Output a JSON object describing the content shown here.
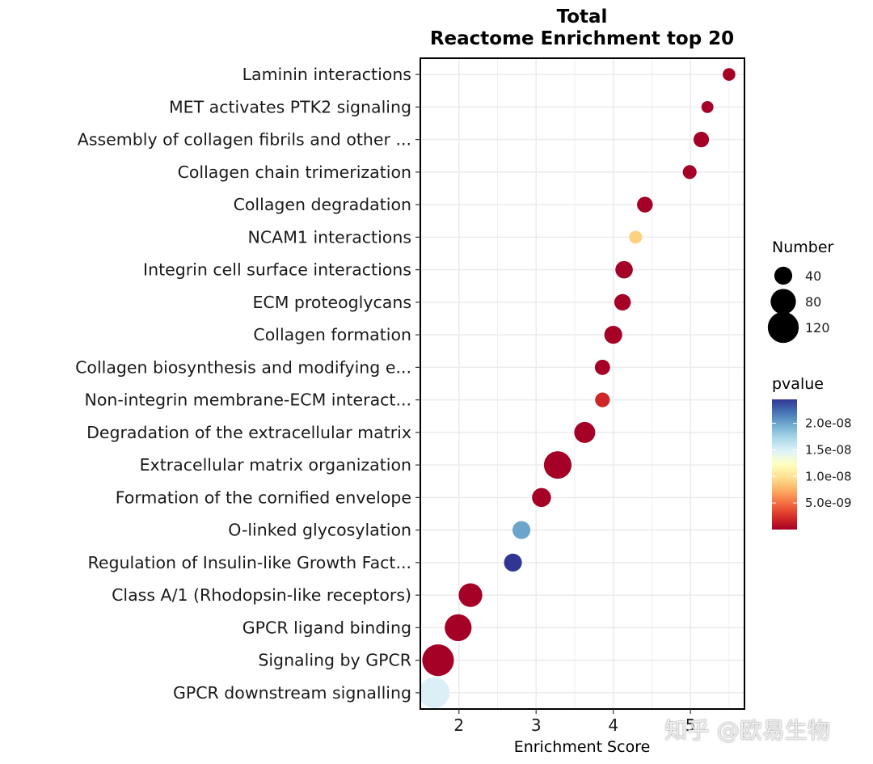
{
  "chart_data": {
    "type": "scatter",
    "title": "Total",
    "subtitle": "Reactome Enrichment top 20",
    "xlabel": "Enrichment Score",
    "ylabel": "",
    "xlim": [
      1.5,
      5.7
    ],
    "x_ticks": [
      2,
      3,
      4,
      5
    ],
    "terms": [
      {
        "label": "Laminin interactions",
        "x": 5.5,
        "number": 20,
        "pvalue": 1e-12
      },
      {
        "label": "MET activates PTK2 signaling",
        "x": 5.22,
        "number": 18,
        "pvalue": 1e-12
      },
      {
        "label": "Assembly of collagen fibrils and other ...",
        "x": 5.14,
        "number": 30,
        "pvalue": 1e-12
      },
      {
        "label": "Collagen chain trimerization",
        "x": 4.99,
        "number": 24,
        "pvalue": 1e-12
      },
      {
        "label": "Collagen degradation",
        "x": 4.41,
        "number": 31,
        "pvalue": 1e-12
      },
      {
        "label": "NCAM1 interactions",
        "x": 4.29,
        "number": 21,
        "pvalue": 9e-09
      },
      {
        "label": "Integrin cell surface interactions",
        "x": 4.14,
        "number": 38,
        "pvalue": 1e-12
      },
      {
        "label": "ECM proteoglycans",
        "x": 4.12,
        "number": 34,
        "pvalue": 1e-12
      },
      {
        "label": "Collagen formation",
        "x": 4.0,
        "number": 40,
        "pvalue": 1e-12
      },
      {
        "label": "Collagen biosynthesis and modifying e...",
        "x": 3.86,
        "number": 29,
        "pvalue": 1e-12
      },
      {
        "label": "Non-integrin membrane-ECM interact...",
        "x": 3.86,
        "number": 27,
        "pvalue": 2e-09
      },
      {
        "label": "Degradation of the extracellular matrix",
        "x": 3.63,
        "number": 55,
        "pvalue": 1e-12
      },
      {
        "label": "Extracellular matrix organization",
        "x": 3.28,
        "number": 95,
        "pvalue": 1e-12
      },
      {
        "label": "Formation of the cornified envelope",
        "x": 3.07,
        "number": 45,
        "pvalue": 1e-12
      },
      {
        "label": "O-linked glycosylation",
        "x": 2.81,
        "number": 40,
        "pvalue": 2e-08
      },
      {
        "label": "Regulation of Insulin-like Growth Fact...",
        "x": 2.7,
        "number": 40,
        "pvalue": 2.45e-08
      },
      {
        "label": "Class A/1 (Rhodopsin-like receptors)",
        "x": 2.15,
        "number": 70,
        "pvalue": 1e-12
      },
      {
        "label": "GPCR ligand binding",
        "x": 1.99,
        "number": 90,
        "pvalue": 1e-12
      },
      {
        "label": "Signaling by GPCR",
        "x": 1.73,
        "number": 125,
        "pvalue": 1e-12
      },
      {
        "label": "GPCR downstream signalling",
        "x": 1.68,
        "number": 120,
        "pvalue": 1.5e-08
      }
    ],
    "size_legend": {
      "title": "Number",
      "values": [
        40,
        80,
        120
      ],
      "labels": [
        "40",
        "80",
        "120"
      ]
    },
    "color_legend": {
      "title": "pvalue",
      "range": [
        0,
        2.45e-08
      ],
      "tick_values": [
        2e-08,
        1.5e-08,
        1e-08,
        5e-09
      ],
      "tick_labels": [
        "2.0e-08",
        "1.5e-08",
        "1.0e-08",
        "5.0e-09"
      ],
      "colors": [
        "#a50026",
        "#d73027",
        "#f46d43",
        "#fdae61",
        "#fee090",
        "#ffffbf",
        "#e0f3f8",
        "#abd9e9",
        "#74add1",
        "#4575b4",
        "#313695"
      ]
    },
    "grid": true
  },
  "watermark": "知乎 @欧易生物"
}
